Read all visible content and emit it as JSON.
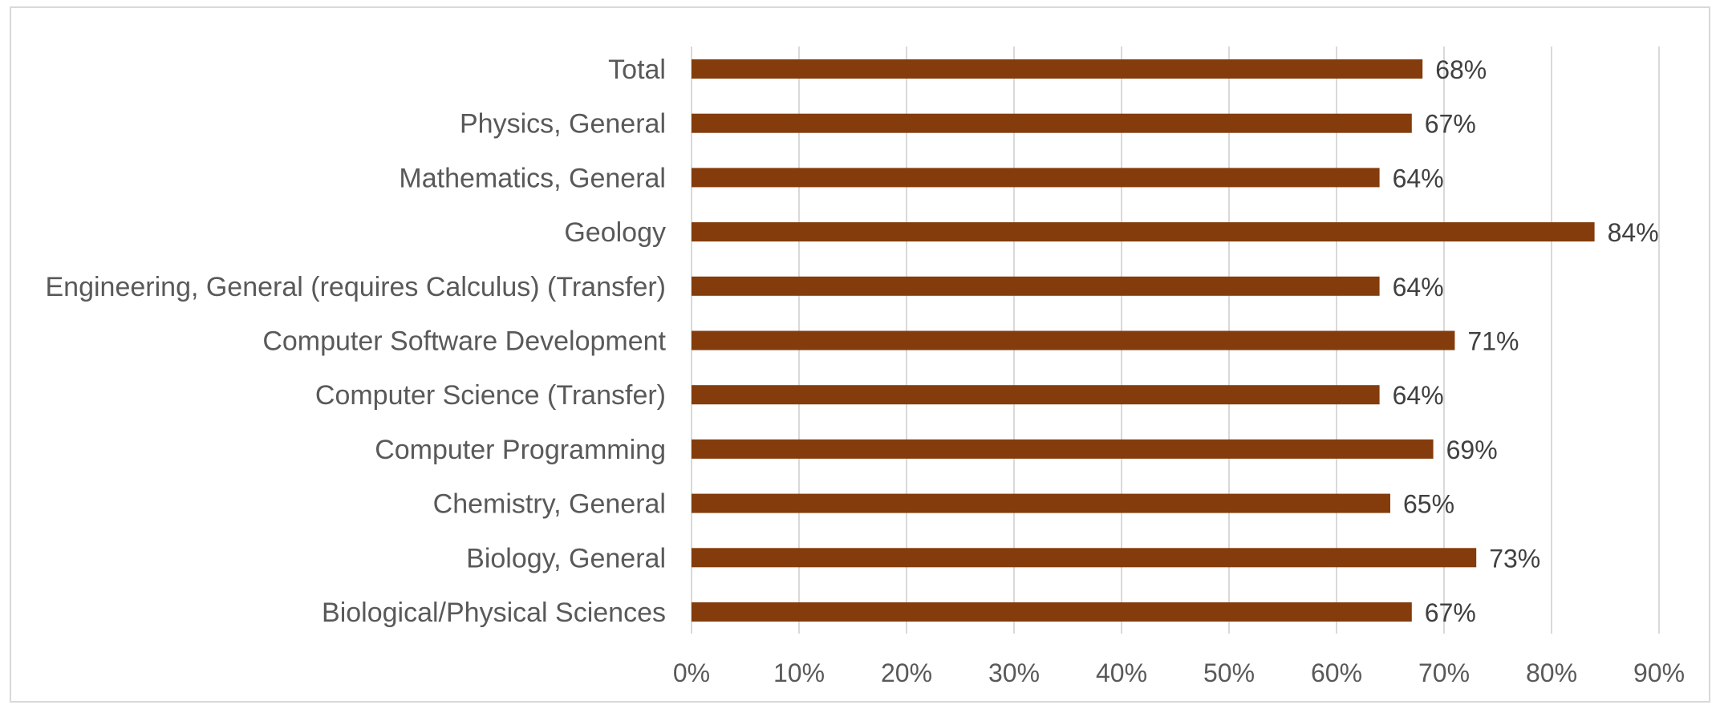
{
  "chart_data": {
    "type": "bar",
    "orientation": "horizontal",
    "categories": [
      "Total",
      "Physics, General",
      "Mathematics, General",
      "Geology",
      "Engineering, General (requires Calculus) (Transfer)",
      "Computer Software Development",
      "Computer Science (Transfer)",
      "Computer Programming",
      "Chemistry, General",
      "Biology, General",
      "Biological/Physical Sciences"
    ],
    "values": [
      68,
      67,
      64,
      84,
      64,
      71,
      64,
      69,
      65,
      73,
      67
    ],
    "data_labels": [
      "68%",
      "67%",
      "64%",
      "84%",
      "64%",
      "71%",
      "64%",
      "69%",
      "65%",
      "73%",
      "67%"
    ],
    "x_ticks": [
      0,
      10,
      20,
      30,
      40,
      50,
      60,
      70,
      80,
      90
    ],
    "x_tick_labels": [
      "0%",
      "10%",
      "20%",
      "30%",
      "40%",
      "50%",
      "60%",
      "70%",
      "80%",
      "90%"
    ],
    "xlim": [
      0,
      90
    ],
    "grid": "vertical",
    "legend": "none",
    "bar_color": "#843c0c",
    "gridline_color": "#d9d9d9",
    "title": "",
    "xlabel": "",
    "ylabel": ""
  }
}
